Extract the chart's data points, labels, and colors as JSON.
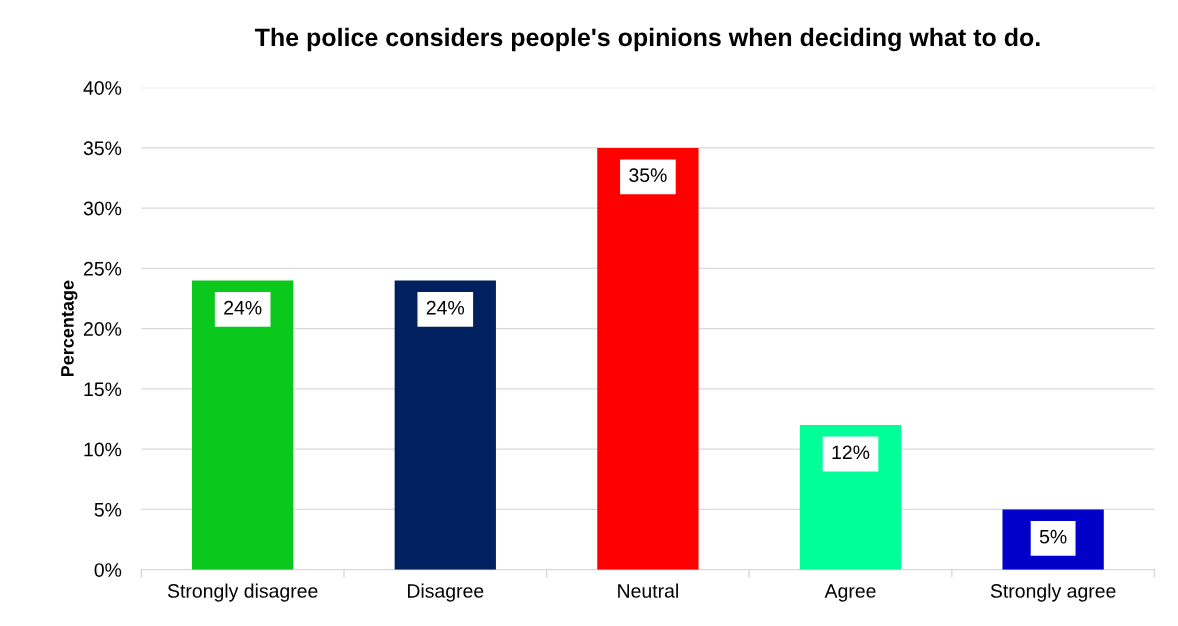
{
  "chart_data": {
    "type": "bar",
    "title": "The police considers people's opinions when deciding what to do.",
    "ylabel": "Percentage",
    "categories": [
      "Strongly disagree",
      "Disagree",
      "Neutral",
      "Agree",
      "Strongly agree"
    ],
    "values": [
      24,
      24,
      35,
      12,
      5
    ],
    "value_labels": [
      "24%",
      "24%",
      "35%",
      "12%",
      "5%"
    ],
    "colors": [
      "#0ac81c",
      "#002060",
      "#ff0000",
      "#00ff99",
      "#0000c8"
    ],
    "ylim": [
      0,
      40
    ],
    "yticks": [
      {
        "value": 0,
        "label": "0%"
      },
      {
        "value": 5,
        "label": "5%"
      },
      {
        "value": 10,
        "label": "10%"
      },
      {
        "value": 15,
        "label": "15%"
      },
      {
        "value": 20,
        "label": "20%"
      },
      {
        "value": 25,
        "label": "25%"
      },
      {
        "value": 30,
        "label": "30%"
      },
      {
        "value": 35,
        "label": "35%"
      },
      {
        "value": 40,
        "label": "40%"
      }
    ],
    "grid": "y"
  }
}
